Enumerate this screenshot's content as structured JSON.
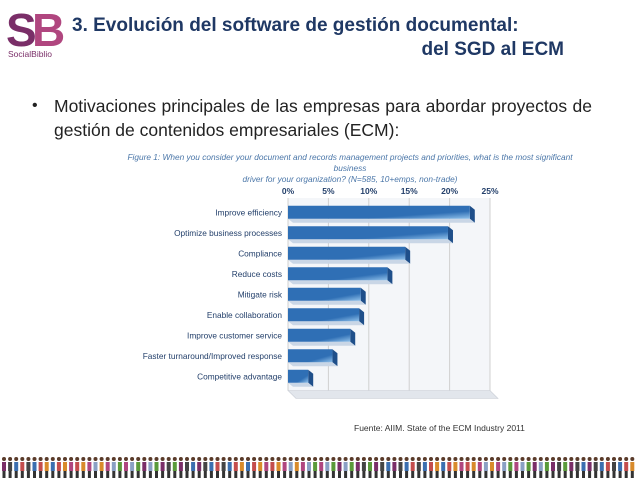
{
  "logo": {
    "letters": "SB",
    "name": "SocialBiblio",
    "colors": {
      "s": "#7a2e68",
      "b": "#b0467f"
    }
  },
  "slide": {
    "title_line1": "3. Evolución del software de gestión documental:",
    "title_line2": "del SGD al ECM",
    "bullet_symbol": "•",
    "bullet": "Motivaciones principales de las empresas para abordar proyectos de gestión de contenidos empresariales (ECM):",
    "caption_line1": "Figure 1: When you consider your document and records management projects and priorities, what is the most significant business",
    "caption_line2": "driver for your organization? (N=585, 10+emps, non-trade)",
    "source": "Fuente: AIIM. State of the ECM Industry 2011"
  },
  "chart_data": {
    "type": "bar",
    "orientation": "horizontal",
    "categories": [
      "Improve efficiency",
      "Optimize business processes",
      "Compliance",
      "Reduce costs",
      "Mitigate risk",
      "Enable collaboration",
      "Improve customer service",
      "Faster turnaround/Improved response",
      "Competitive advantage"
    ],
    "values": [
      22.5,
      19.8,
      14.5,
      12.3,
      9.0,
      8.8,
      7.7,
      5.5,
      2.5
    ],
    "xticks": [
      "0%",
      "5%",
      "10%",
      "15%",
      "20%",
      "25%"
    ],
    "xlim": [
      0,
      25
    ],
    "grid": true,
    "colors": {
      "bar": "#2f6fb5",
      "bar_light": "#8fc0ea",
      "grid": "#d0d0d0",
      "label": "#24406b"
    }
  }
}
